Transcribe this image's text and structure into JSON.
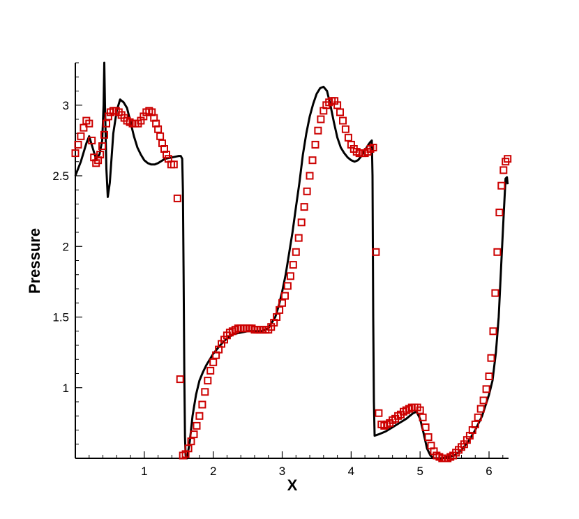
{
  "chart_data": {
    "type": "scatter",
    "xlabel": "X",
    "ylabel": "Pressure",
    "xlim": [
      0,
      6.283
    ],
    "ylim": [
      0.5,
      3.3
    ],
    "x_ticks": [
      1,
      2,
      3,
      4,
      5,
      6
    ],
    "x_tick_labels": [
      "1",
      "2",
      "3",
      "4",
      "5",
      "6"
    ],
    "y_ticks": [
      1,
      1.5,
      2,
      2.5,
      3
    ],
    "y_tick_labels": [
      "1",
      "1.5",
      "2",
      "2.5",
      "3"
    ],
    "grid": false,
    "colors": {
      "line": "#000000",
      "markers": "#cc0000"
    },
    "series": [
      {
        "style": "line",
        "color": "#000000",
        "points": [
          [
            0.0,
            2.5
          ],
          [
            0.08,
            2.6
          ],
          [
            0.16,
            2.73
          ],
          [
            0.2,
            2.78
          ],
          [
            0.25,
            2.7
          ],
          [
            0.3,
            2.62
          ],
          [
            0.35,
            2.65
          ],
          [
            0.39,
            2.75
          ],
          [
            0.41,
            3.0
          ],
          [
            0.42,
            3.3
          ],
          [
            0.43,
            3.0
          ],
          [
            0.45,
            2.55
          ],
          [
            0.47,
            2.35
          ],
          [
            0.5,
            2.45
          ],
          [
            0.55,
            2.8
          ],
          [
            0.6,
            2.96
          ],
          [
            0.65,
            3.04
          ],
          [
            0.7,
            3.02
          ],
          [
            0.75,
            2.98
          ],
          [
            0.8,
            2.88
          ],
          [
            0.85,
            2.78
          ],
          [
            0.9,
            2.7
          ],
          [
            0.95,
            2.65
          ],
          [
            1.0,
            2.61
          ],
          [
            1.05,
            2.59
          ],
          [
            1.1,
            2.58
          ],
          [
            1.15,
            2.58
          ],
          [
            1.2,
            2.59
          ],
          [
            1.3,
            2.62
          ],
          [
            1.4,
            2.63
          ],
          [
            1.5,
            2.64
          ],
          [
            1.53,
            2.64
          ],
          [
            1.55,
            2.62
          ],
          [
            1.56,
            2.4
          ],
          [
            1.57,
            1.8
          ],
          [
            1.58,
            1.1
          ],
          [
            1.59,
            0.65
          ],
          [
            1.6,
            0.52
          ],
          [
            1.62,
            0.5
          ],
          [
            1.66,
            0.62
          ],
          [
            1.7,
            0.8
          ],
          [
            1.75,
            0.95
          ],
          [
            1.8,
            1.05
          ],
          [
            1.85,
            1.11
          ],
          [
            1.9,
            1.16
          ],
          [
            2.0,
            1.24
          ],
          [
            2.1,
            1.3
          ],
          [
            2.2,
            1.35
          ],
          [
            2.3,
            1.38
          ],
          [
            2.4,
            1.39
          ],
          [
            2.5,
            1.4
          ],
          [
            2.6,
            1.4
          ],
          [
            2.7,
            1.4
          ],
          [
            2.8,
            1.42
          ],
          [
            2.9,
            1.5
          ],
          [
            2.95,
            1.58
          ],
          [
            3.0,
            1.68
          ],
          [
            3.05,
            1.8
          ],
          [
            3.1,
            1.95
          ],
          [
            3.15,
            2.1
          ],
          [
            3.2,
            2.28
          ],
          [
            3.25,
            2.45
          ],
          [
            3.3,
            2.65
          ],
          [
            3.35,
            2.8
          ],
          [
            3.4,
            2.92
          ],
          [
            3.45,
            3.01
          ],
          [
            3.5,
            3.08
          ],
          [
            3.55,
            3.12
          ],
          [
            3.6,
            3.13
          ],
          [
            3.65,
            3.1
          ],
          [
            3.7,
            3.0
          ],
          [
            3.75,
            2.88
          ],
          [
            3.8,
            2.77
          ],
          [
            3.85,
            2.7
          ],
          [
            3.9,
            2.66
          ],
          [
            3.95,
            2.63
          ],
          [
            4.0,
            2.61
          ],
          [
            4.05,
            2.6
          ],
          [
            4.1,
            2.61
          ],
          [
            4.15,
            2.64
          ],
          [
            4.2,
            2.68
          ],
          [
            4.25,
            2.72
          ],
          [
            4.28,
            2.74
          ],
          [
            4.3,
            2.75
          ],
          [
            4.31,
            2.5
          ],
          [
            4.32,
            1.5
          ],
          [
            4.33,
            0.9
          ],
          [
            4.34,
            0.66
          ],
          [
            4.4,
            0.67
          ],
          [
            4.5,
            0.69
          ],
          [
            4.6,
            0.72
          ],
          [
            4.7,
            0.75
          ],
          [
            4.8,
            0.78
          ],
          [
            4.9,
            0.82
          ],
          [
            4.95,
            0.83
          ],
          [
            5.0,
            0.78
          ],
          [
            5.05,
            0.68
          ],
          [
            5.1,
            0.57
          ],
          [
            5.15,
            0.52
          ],
          [
            5.2,
            0.5
          ],
          [
            5.3,
            0.5
          ],
          [
            5.4,
            0.51
          ],
          [
            5.5,
            0.52
          ],
          [
            5.6,
            0.56
          ],
          [
            5.7,
            0.62
          ],
          [
            5.8,
            0.7
          ],
          [
            5.9,
            0.8
          ],
          [
            6.0,
            0.95
          ],
          [
            6.05,
            1.05
          ],
          [
            6.1,
            1.25
          ],
          [
            6.14,
            1.5
          ],
          [
            6.18,
            1.9
          ],
          [
            6.21,
            2.2
          ],
          [
            6.24,
            2.48
          ],
          [
            6.26,
            2.49
          ],
          [
            6.27,
            2.44
          ]
        ]
      },
      {
        "style": "markers",
        "marker": "square",
        "color": "#cc0000",
        "points": [
          [
            0.0,
            2.66
          ],
          [
            0.04,
            2.72
          ],
          [
            0.08,
            2.78
          ],
          [
            0.12,
            2.84
          ],
          [
            0.16,
            2.89
          ],
          [
            0.2,
            2.87
          ],
          [
            0.24,
            2.75
          ],
          [
            0.27,
            2.63
          ],
          [
            0.3,
            2.59
          ],
          [
            0.33,
            2.61
          ],
          [
            0.36,
            2.65
          ],
          [
            0.39,
            2.71
          ],
          [
            0.42,
            2.79
          ],
          [
            0.45,
            2.87
          ],
          [
            0.48,
            2.92
          ],
          [
            0.51,
            2.95
          ],
          [
            0.55,
            2.96
          ],
          [
            0.59,
            2.96
          ],
          [
            0.63,
            2.95
          ],
          [
            0.67,
            2.93
          ],
          [
            0.71,
            2.91
          ],
          [
            0.75,
            2.89
          ],
          [
            0.79,
            2.88
          ],
          [
            0.83,
            2.87
          ],
          [
            0.87,
            2.87
          ],
          [
            0.91,
            2.87
          ],
          [
            0.95,
            2.89
          ],
          [
            0.99,
            2.92
          ],
          [
            1.03,
            2.95
          ],
          [
            1.07,
            2.96
          ],
          [
            1.11,
            2.95
          ],
          [
            1.14,
            2.91
          ],
          [
            1.17,
            2.87
          ],
          [
            1.2,
            2.83
          ],
          [
            1.23,
            2.78
          ],
          [
            1.26,
            2.73
          ],
          [
            1.29,
            2.69
          ],
          [
            1.32,
            2.65
          ],
          [
            1.35,
            2.62
          ],
          [
            1.39,
            2.58
          ],
          [
            1.43,
            2.58
          ],
          [
            1.48,
            2.34
          ],
          [
            1.52,
            1.06
          ],
          [
            1.56,
            0.52
          ],
          [
            1.6,
            0.53
          ],
          [
            1.64,
            0.57
          ],
          [
            1.68,
            0.62
          ],
          [
            1.72,
            0.67
          ],
          [
            1.76,
            0.73
          ],
          [
            1.8,
            0.8
          ],
          [
            1.84,
            0.88
          ],
          [
            1.88,
            0.97
          ],
          [
            1.92,
            1.05
          ],
          [
            1.96,
            1.12
          ],
          [
            2.0,
            1.18
          ],
          [
            2.04,
            1.23
          ],
          [
            2.08,
            1.27
          ],
          [
            2.12,
            1.31
          ],
          [
            2.16,
            1.34
          ],
          [
            2.2,
            1.37
          ],
          [
            2.24,
            1.39
          ],
          [
            2.28,
            1.4
          ],
          [
            2.32,
            1.41
          ],
          [
            2.36,
            1.42
          ],
          [
            2.4,
            1.42
          ],
          [
            2.44,
            1.42
          ],
          [
            2.48,
            1.42
          ],
          [
            2.52,
            1.42
          ],
          [
            2.56,
            1.42
          ],
          [
            2.6,
            1.41
          ],
          [
            2.64,
            1.41
          ],
          [
            2.68,
            1.41
          ],
          [
            2.72,
            1.41
          ],
          [
            2.76,
            1.41
          ],
          [
            2.8,
            1.41
          ],
          [
            2.84,
            1.43
          ],
          [
            2.88,
            1.46
          ],
          [
            2.92,
            1.5
          ],
          [
            2.96,
            1.55
          ],
          [
            3.0,
            1.6
          ],
          [
            3.04,
            1.65
          ],
          [
            3.08,
            1.72
          ],
          [
            3.12,
            1.79
          ],
          [
            3.16,
            1.87
          ],
          [
            3.2,
            1.96
          ],
          [
            3.24,
            2.06
          ],
          [
            3.28,
            2.17
          ],
          [
            3.32,
            2.28
          ],
          [
            3.36,
            2.39
          ],
          [
            3.4,
            2.5
          ],
          [
            3.44,
            2.61
          ],
          [
            3.48,
            2.72
          ],
          [
            3.52,
            2.82
          ],
          [
            3.56,
            2.9
          ],
          [
            3.6,
            2.96
          ],
          [
            3.64,
            3.0
          ],
          [
            3.68,
            3.02
          ],
          [
            3.72,
            3.03
          ],
          [
            3.76,
            3.03
          ],
          [
            3.8,
            3.0
          ],
          [
            3.84,
            2.95
          ],
          [
            3.88,
            2.89
          ],
          [
            3.92,
            2.83
          ],
          [
            3.96,
            2.77
          ],
          [
            4.0,
            2.72
          ],
          [
            4.04,
            2.69
          ],
          [
            4.08,
            2.67
          ],
          [
            4.12,
            2.66
          ],
          [
            4.16,
            2.66
          ],
          [
            4.2,
            2.66
          ],
          [
            4.24,
            2.67
          ],
          [
            4.28,
            2.69
          ],
          [
            4.32,
            2.7
          ],
          [
            4.36,
            1.96
          ],
          [
            4.4,
            0.82
          ],
          [
            4.44,
            0.74
          ],
          [
            4.48,
            0.73
          ],
          [
            4.52,
            0.74
          ],
          [
            4.56,
            0.75
          ],
          [
            4.6,
            0.77
          ],
          [
            4.64,
            0.78
          ],
          [
            4.68,
            0.8
          ],
          [
            4.72,
            0.81
          ],
          [
            4.76,
            0.83
          ],
          [
            4.8,
            0.84
          ],
          [
            4.84,
            0.85
          ],
          [
            4.88,
            0.86
          ],
          [
            4.92,
            0.86
          ],
          [
            4.96,
            0.86
          ],
          [
            5.0,
            0.84
          ],
          [
            5.04,
            0.79
          ],
          [
            5.08,
            0.72
          ],
          [
            5.12,
            0.65
          ],
          [
            5.16,
            0.59
          ],
          [
            5.2,
            0.55
          ],
          [
            5.24,
            0.52
          ],
          [
            5.28,
            0.51
          ],
          [
            5.32,
            0.5
          ],
          [
            5.36,
            0.5
          ],
          [
            5.4,
            0.5
          ],
          [
            5.44,
            0.51
          ],
          [
            5.48,
            0.52
          ],
          [
            5.52,
            0.54
          ],
          [
            5.56,
            0.56
          ],
          [
            5.6,
            0.58
          ],
          [
            5.64,
            0.6
          ],
          [
            5.68,
            0.63
          ],
          [
            5.72,
            0.66
          ],
          [
            5.76,
            0.7
          ],
          [
            5.8,
            0.74
          ],
          [
            5.84,
            0.79
          ],
          [
            5.88,
            0.85
          ],
          [
            5.92,
            0.91
          ],
          [
            5.96,
            0.99
          ],
          [
            6.0,
            1.08
          ],
          [
            6.03,
            1.21
          ],
          [
            6.06,
            1.4
          ],
          [
            6.09,
            1.67
          ],
          [
            6.12,
            1.96
          ],
          [
            6.15,
            2.24
          ],
          [
            6.18,
            2.43
          ],
          [
            6.21,
            2.54
          ],
          [
            6.24,
            2.6
          ],
          [
            6.27,
            2.62
          ]
        ]
      }
    ]
  }
}
